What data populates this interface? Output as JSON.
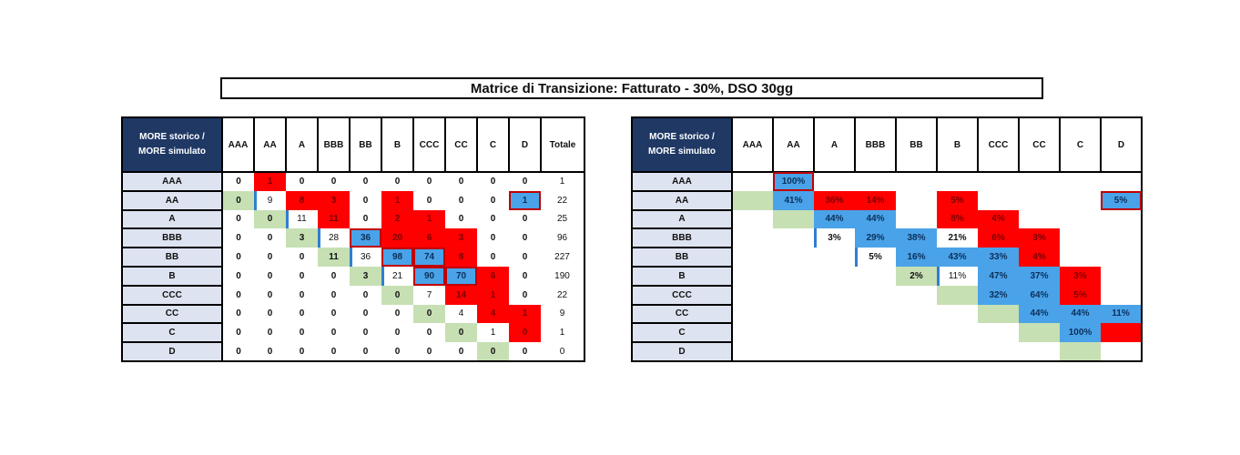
{
  "title": "Matrice di Transizione:  Fatturato - 30%, DSO 30gg",
  "corner_label_line1": "MORE storico /",
  "corner_label_line2": "MORE simulato",
  "columns": [
    "AAA",
    "AA",
    "A",
    "BBB",
    "BB",
    "B",
    "CCC",
    "CC",
    "C",
    "D"
  ],
  "total_label": "Totale",
  "rows": [
    "AAA",
    "AA",
    "A",
    "BBB",
    "BB",
    "B",
    "CCC",
    "CC",
    "C",
    "D"
  ],
  "counts": [
    [
      "0",
      "1",
      "0",
      "0",
      "0",
      "0",
      "0",
      "0",
      "0",
      "0"
    ],
    [
      "0",
      "9",
      "8",
      "3",
      "0",
      "1",
      "0",
      "0",
      "0",
      "1"
    ],
    [
      "0",
      "0",
      "11",
      "11",
      "0",
      "2",
      "1",
      "0",
      "0",
      "0"
    ],
    [
      "0",
      "0",
      "3",
      "28",
      "36",
      "20",
      "6",
      "3",
      "0",
      "0"
    ],
    [
      "0",
      "0",
      "0",
      "11",
      "36",
      "98",
      "74",
      "8",
      "0",
      "0"
    ],
    [
      "0",
      "0",
      "0",
      "0",
      "3",
      "21",
      "90",
      "70",
      "6",
      "0"
    ],
    [
      "0",
      "0",
      "0",
      "0",
      "0",
      "0",
      "7",
      "14",
      "1",
      "0"
    ],
    [
      "0",
      "0",
      "0",
      "0",
      "0",
      "0",
      "0",
      "4",
      "4",
      "1"
    ],
    [
      "0",
      "0",
      "0",
      "0",
      "0",
      "0",
      "0",
      "0",
      "1",
      "0"
    ],
    [
      "0",
      "0",
      "0",
      "0",
      "0",
      "0",
      "0",
      "0",
      "0",
      "0"
    ]
  ],
  "totals": [
    "1",
    "22",
    "25",
    "96",
    "227",
    "190",
    "22",
    "9",
    "1",
    "0"
  ],
  "percents": [
    [
      "",
      "100%",
      "",
      "",
      "",
      "",
      "",
      "",
      "",
      ""
    ],
    [
      "",
      "41%",
      "36%",
      "14%",
      "",
      "5%",
      "",
      "",
      "",
      "5%"
    ],
    [
      "",
      "",
      "44%",
      "44%",
      "",
      "8%",
      "4%",
      "",
      "",
      ""
    ],
    [
      "",
      "",
      "3%",
      "29%",
      "38%",
      "21%",
      "6%",
      "3%",
      "",
      ""
    ],
    [
      "",
      "",
      "",
      "5%",
      "16%",
      "43%",
      "33%",
      "4%",
      "",
      ""
    ],
    [
      "",
      "",
      "",
      "",
      "2%",
      "11%",
      "47%",
      "37%",
      "3%",
      ""
    ],
    [
      "",
      "",
      "",
      "",
      "",
      "",
      "32%",
      "64%",
      "5%",
      ""
    ],
    [
      "",
      "",
      "",
      "",
      "",
      "",
      "",
      "44%",
      "44%",
      "11%"
    ],
    [
      "",
      "",
      "",
      "",
      "",
      "",
      "",
      "",
      "100%",
      ""
    ],
    [
      "",
      "",
      "",
      "",
      "",
      "",
      "",
      "",
      "",
      ""
    ]
  ],
  "colors": {
    "green": "#c6e0b4",
    "red": "#ff0000",
    "blue": "#4aa3e8",
    "navy": "#1f3864",
    "rowlabel": "#dde3f0"
  }
}
